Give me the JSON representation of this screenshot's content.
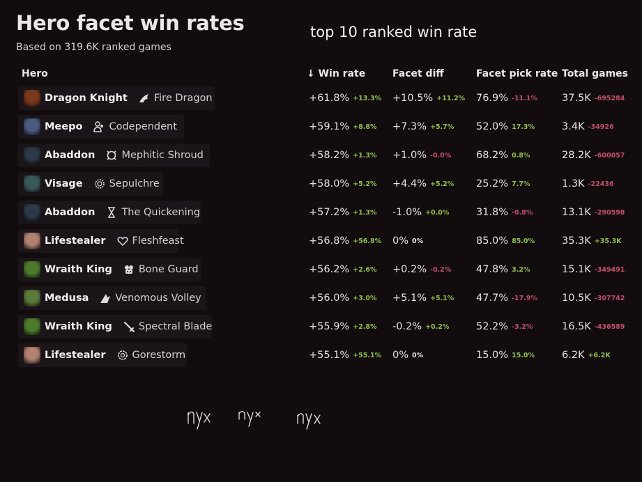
{
  "header": {
    "title": "Hero facet win rates",
    "subtitle": "Based on 319.6K ranked games"
  },
  "annotation_top": "top 10 ranked win rate",
  "annotation_handwriting": "nyx nyx nyx",
  "columns": {
    "hero": "Hero",
    "win_rate": "↓ Win rate",
    "facet_diff": "Facet diff",
    "pick_rate": "Facet pick rate",
    "total_games": "Total games"
  },
  "rows": [
    {
      "hero": "Dragon Knight",
      "facet": "Fire Dragon",
      "icon": "dragon-icon",
      "portrait_color": "#7a3a1c",
      "win_rate": "+61.8%",
      "win_delta": "+13.3%",
      "win_delta_sign": "pos",
      "facet_diff": "+10.5%",
      "facet_delta": "+11.2%",
      "facet_delta_sign": "pos",
      "pick_rate": "76.9%",
      "pick_delta": "-11.1%",
      "pick_delta_sign": "neg",
      "games": "37.5K",
      "games_delta": "-695284",
      "games_delta_sign": "neg"
    },
    {
      "hero": "Meepo",
      "facet": "Codependent",
      "icon": "people-icon",
      "portrait_color": "#4a5a80",
      "win_rate": "+59.1%",
      "win_delta": "+8.8%",
      "win_delta_sign": "pos",
      "facet_diff": "+7.3%",
      "facet_delta": "+5.7%",
      "facet_delta_sign": "pos",
      "pick_rate": "52.0%",
      "pick_delta": "17.3%",
      "pick_delta_sign": "pos",
      "games": "3.4K",
      "games_delta": "-34926",
      "games_delta_sign": "neg"
    },
    {
      "hero": "Abaddon",
      "facet": "Mephitic Shroud",
      "icon": "shroud-icon",
      "portrait_color": "#2a3a4a",
      "win_rate": "+58.2%",
      "win_delta": "+1.3%",
      "win_delta_sign": "pos",
      "facet_diff": "+1.0%",
      "facet_delta": "-0.0%",
      "facet_delta_sign": "neg",
      "pick_rate": "68.2%",
      "pick_delta": "0.8%",
      "pick_delta_sign": "pos",
      "games": "28.2K",
      "games_delta": "-600057",
      "games_delta_sign": "neg"
    },
    {
      "hero": "Visage",
      "facet": "Sepulchre",
      "icon": "sepulchre-icon",
      "portrait_color": "#3a5a5a",
      "win_rate": "+58.0%",
      "win_delta": "+5.2%",
      "win_delta_sign": "pos",
      "facet_diff": "+4.4%",
      "facet_delta": "+5.2%",
      "facet_delta_sign": "pos",
      "pick_rate": "25.2%",
      "pick_delta": "7.7%",
      "pick_delta_sign": "pos",
      "games": "1.3K",
      "games_delta": "-22436",
      "games_delta_sign": "neg"
    },
    {
      "hero": "Abaddon",
      "facet": "The Quickening",
      "icon": "hourglass-icon",
      "portrait_color": "#2a3a4a",
      "win_rate": "+57.2%",
      "win_delta": "+1.3%",
      "win_delta_sign": "pos",
      "facet_diff": "-1.0%",
      "facet_delta": "+0.0%",
      "facet_delta_sign": "pos",
      "pick_rate": "31.8%",
      "pick_delta": "-0.8%",
      "pick_delta_sign": "neg",
      "games": "13.1K",
      "games_delta": "-290598",
      "games_delta_sign": "neg"
    },
    {
      "hero": "Lifestealer",
      "facet": "Fleshfeast",
      "icon": "heart-icon",
      "portrait_color": "#b08070",
      "win_rate": "+56.8%",
      "win_delta": "+56.8%",
      "win_delta_sign": "pos",
      "facet_diff": "0%",
      "facet_delta": "0%",
      "facet_delta_sign": "neu",
      "pick_rate": "85.0%",
      "pick_delta": "85.0%",
      "pick_delta_sign": "pos",
      "games": "35.3K",
      "games_delta": "+35.3K",
      "games_delta_sign": "pos"
    },
    {
      "hero": "Wraith King",
      "facet": "Bone Guard",
      "icon": "skull-icon",
      "portrait_color": "#4a7a2a",
      "win_rate": "+56.2%",
      "win_delta": "+2.6%",
      "win_delta_sign": "pos",
      "facet_diff": "+0.2%",
      "facet_delta": "-0.2%",
      "facet_delta_sign": "neg",
      "pick_rate": "47.8%",
      "pick_delta": "3.2%",
      "pick_delta_sign": "pos",
      "games": "15.1K",
      "games_delta": "-349491",
      "games_delta_sign": "neg"
    },
    {
      "hero": "Medusa",
      "facet": "Venomous Volley",
      "icon": "volley-icon",
      "portrait_color": "#5a7a3a",
      "win_rate": "+56.0%",
      "win_delta": "+3.0%",
      "win_delta_sign": "pos",
      "facet_diff": "+5.1%",
      "facet_delta": "+5.1%",
      "facet_delta_sign": "pos",
      "pick_rate": "47.7%",
      "pick_delta": "-17.9%",
      "pick_delta_sign": "neg",
      "games": "10.5K",
      "games_delta": "-307742",
      "games_delta_sign": "neg"
    },
    {
      "hero": "Wraith King",
      "facet": "Spectral Blade",
      "icon": "sword-icon",
      "portrait_color": "#4a7a2a",
      "win_rate": "+55.9%",
      "win_delta": "+2.8%",
      "win_delta_sign": "pos",
      "facet_diff": "-0.2%",
      "facet_delta": "+0.2%",
      "facet_delta_sign": "pos",
      "pick_rate": "52.2%",
      "pick_delta": "-3.2%",
      "pick_delta_sign": "neg",
      "games": "16.5K",
      "games_delta": "-436589",
      "games_delta_sign": "neg"
    },
    {
      "hero": "Lifestealer",
      "facet": "Gorestorm",
      "icon": "gorestorm-icon",
      "portrait_color": "#b08070",
      "win_rate": "+55.1%",
      "win_delta": "+55.1%",
      "win_delta_sign": "pos",
      "facet_diff": "0%",
      "facet_delta": "0%",
      "facet_delta_sign": "neu",
      "pick_rate": "15.0%",
      "pick_delta": "15.0%",
      "pick_delta_sign": "pos",
      "games": "6.2K",
      "games_delta": "+6.2K",
      "games_delta_sign": "pos"
    }
  ]
}
